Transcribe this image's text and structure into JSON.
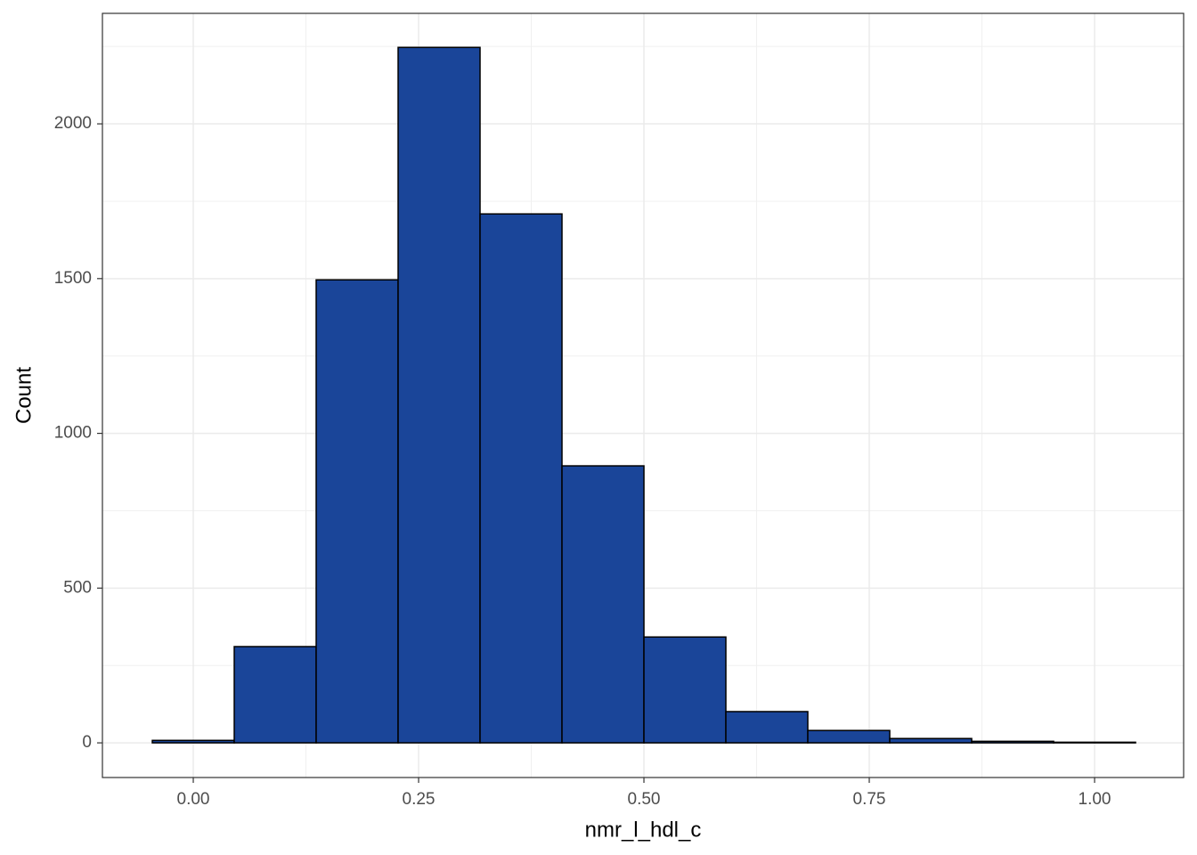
{
  "chart_data": {
    "type": "histogram",
    "x_label": "nmr_l_hdl_c",
    "y_label": "Count",
    "bins": [
      -0.04545,
      0.04545,
      0.13636,
      0.22727,
      0.31818,
      0.40909,
      0.5,
      0.59091,
      0.68182,
      0.77273,
      0.86364,
      0.95455,
      1.04545
    ],
    "values": [
      8,
      311,
      1496,
      2247,
      1709,
      895,
      342,
      101,
      40,
      14,
      5,
      2
    ],
    "color": "#1a4599",
    "edge_color": "#000000",
    "xlim": [
      -0.1008,
      1.0988
    ],
    "ylim": [
      -112,
      2357
    ],
    "xticks": [
      {
        "value": 0,
        "label": "0.00"
      },
      {
        "value": 0.25,
        "label": "0.25"
      },
      {
        "value": 0.5,
        "label": "0.50"
      },
      {
        "value": 0.75,
        "label": "0.75"
      },
      {
        "value": 1,
        "label": "1.00"
      }
    ],
    "yticks": [
      0,
      500,
      1000,
      1500,
      2000
    ],
    "grid": true
  }
}
